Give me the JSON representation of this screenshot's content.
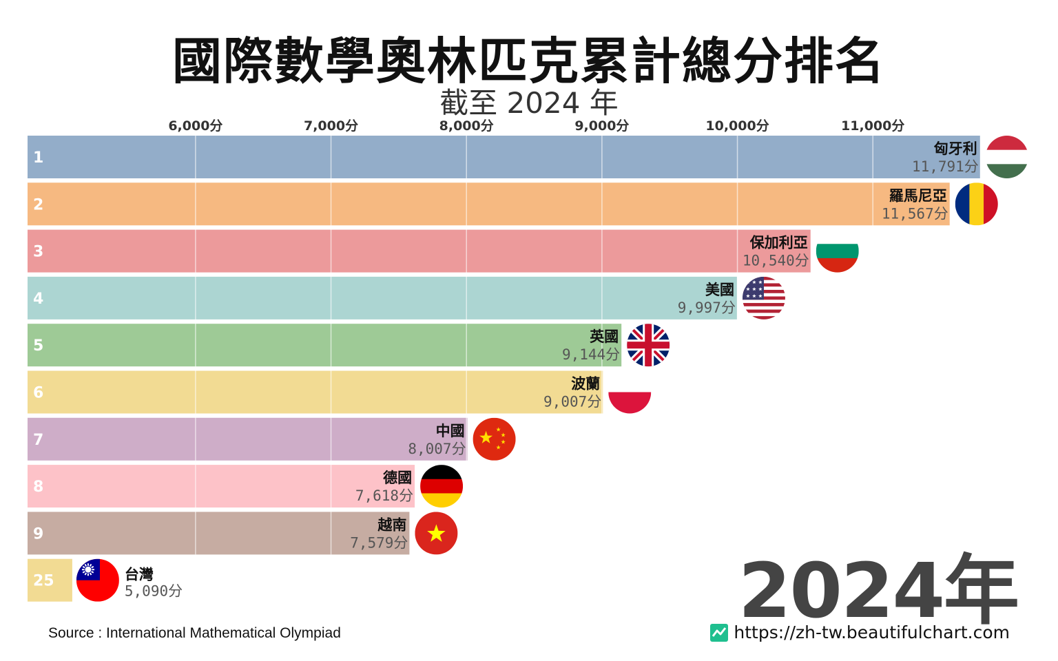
{
  "title": "國際數學奧林匹克累計總分排名",
  "subtitle": "截至 2024 年",
  "year_label": "2024年",
  "source": "Source : International Mathematical Olympiad",
  "website": "https://zh-tw.beautifulchart.com",
  "chart_data": {
    "type": "bar",
    "orientation": "horizontal",
    "xlim": [
      4760,
      12000
    ],
    "x_ticks": [
      {
        "value": 6000,
        "label": "6,000分"
      },
      {
        "value": 7000,
        "label": "7,000分"
      },
      {
        "value": 8000,
        "label": "8,000分"
      },
      {
        "value": 9000,
        "label": "9,000分"
      },
      {
        "value": 10000,
        "label": "10,000分"
      },
      {
        "value": 11000,
        "label": "11,000分"
      }
    ],
    "grid": true,
    "bars": [
      {
        "rank": "1",
        "country": "匈牙利",
        "value": 11791,
        "value_label": "11,791分",
        "color": "#93adc9",
        "flag": "hungary-flag"
      },
      {
        "rank": "2",
        "country": "羅馬尼亞",
        "value": 11567,
        "value_label": "11,567分",
        "color": "#f6b981",
        "flag": "romania-flag"
      },
      {
        "rank": "3",
        "country": "保加利亞",
        "value": 10540,
        "value_label": "10,540分",
        "color": "#ec9a9b",
        "flag": "bulgaria-flag"
      },
      {
        "rank": "4",
        "country": "美國",
        "value": 9997,
        "value_label": "9,997分",
        "color": "#acd5d2",
        "flag": "usa-flag"
      },
      {
        "rank": "5",
        "country": "英國",
        "value": 9144,
        "value_label": "9,144分",
        "color": "#9eca96",
        "flag": "uk-flag"
      },
      {
        "rank": "6",
        "country": "波蘭",
        "value": 9007,
        "value_label": "9,007分",
        "color": "#f2db93",
        "flag": "poland-flag"
      },
      {
        "rank": "7",
        "country": "中國",
        "value": 8007,
        "value_label": "8,007分",
        "color": "#ceadc8",
        "flag": "china-flag"
      },
      {
        "rank": "8",
        "country": "德國",
        "value": 7618,
        "value_label": "7,618分",
        "color": "#fdc2c8",
        "flag": "germany-flag"
      },
      {
        "rank": "9",
        "country": "越南",
        "value": 7579,
        "value_label": "7,579分",
        "color": "#c6aca2",
        "flag": "vietnam-flag"
      },
      {
        "rank": "25",
        "country": "台灣",
        "value": 5090,
        "value_label": "5,090分",
        "color": "#f2db93",
        "flag": "taiwan-flag"
      }
    ]
  }
}
